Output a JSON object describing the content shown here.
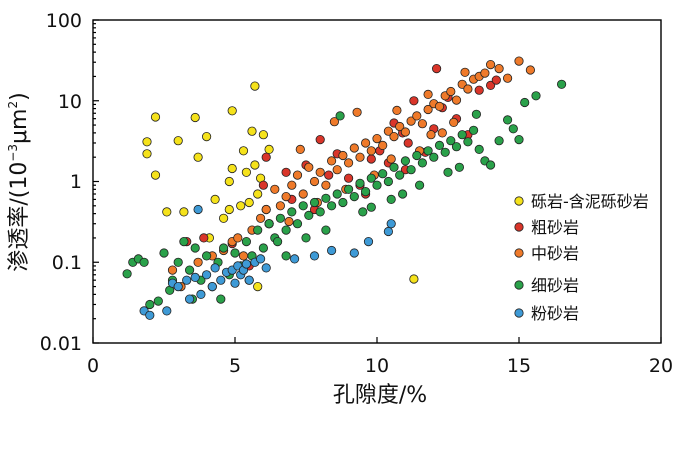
{
  "chart_data": {
    "type": "scatter",
    "xlabel": "孔隙度/%",
    "ylabel_main": "渗透率/",
    "ylabel_unit_open": "(10",
    "ylabel_unit_exp": "−3",
    "ylabel_unit_mid": "μm",
    "ylabel_unit_sq": "2",
    "ylabel_unit_close": ")",
    "xlim": [
      0,
      20
    ],
    "ylim": [
      0.01,
      100
    ],
    "yscale": "log",
    "xticks": [
      0,
      5,
      10,
      15,
      20
    ],
    "xtick_labels": [
      "0",
      "5",
      "10",
      "15",
      "20"
    ],
    "yticks": [
      0.01,
      0.1,
      1,
      10,
      100
    ],
    "ytick_labels": [
      "0.01",
      "0.1",
      "1",
      "10",
      "100"
    ],
    "legend_position": "right",
    "series": [
      {
        "name": "砾岩-含泥砾砂岩",
        "color": "#f5e21b",
        "points": [
          [
            1.9,
            2.2
          ],
          [
            1.9,
            3.1
          ],
          [
            2.2,
            6.3
          ],
          [
            2.2,
            1.2
          ],
          [
            2.6,
            0.42
          ],
          [
            3.0,
            3.2
          ],
          [
            3.2,
            0.42
          ],
          [
            3.6,
            6.2
          ],
          [
            3.7,
            2.0
          ],
          [
            4.0,
            3.6
          ],
          [
            4.1,
            0.2
          ],
          [
            4.3,
            0.6
          ],
          [
            4.6,
            0.35
          ],
          [
            4.8,
            1.0
          ],
          [
            4.8,
            0.45
          ],
          [
            4.9,
            7.5
          ],
          [
            4.9,
            1.45
          ],
          [
            5.2,
            0.5
          ],
          [
            5.3,
            2.4
          ],
          [
            5.4,
            1.3
          ],
          [
            5.5,
            0.55
          ],
          [
            5.6,
            4.2
          ],
          [
            5.7,
            1.6
          ],
          [
            5.8,
            0.7
          ],
          [
            5.9,
            1.1
          ],
          [
            5.7,
            15.2
          ],
          [
            6.0,
            3.8
          ],
          [
            6.1,
            0.45
          ],
          [
            6.2,
            0.3
          ],
          [
            6.2,
            2.5
          ],
          [
            5.8,
            0.05
          ],
          [
            11.3,
            0.062
          ]
        ]
      },
      {
        "name": "粗砂岩",
        "color": "#d9352a",
        "points": [
          [
            3.3,
            0.18
          ],
          [
            3.9,
            0.2
          ],
          [
            4.9,
            0.17
          ],
          [
            5.5,
            0.09
          ],
          [
            6.0,
            0.9
          ],
          [
            6.1,
            2.0
          ],
          [
            6.8,
            1.3
          ],
          [
            7.0,
            0.6
          ],
          [
            7.5,
            1.6
          ],
          [
            7.8,
            0.45
          ],
          [
            8.0,
            3.3
          ],
          [
            8.3,
            1.2
          ],
          [
            8.6,
            2.2
          ],
          [
            9.0,
            1.1
          ],
          [
            9.4,
            0.9
          ],
          [
            9.6,
            0.7
          ],
          [
            9.8,
            1.9
          ],
          [
            10.1,
            2.4
          ],
          [
            10.4,
            1.7
          ],
          [
            10.6,
            5.3
          ],
          [
            10.9,
            4.0
          ],
          [
            11.0,
            1.4
          ],
          [
            11.1,
            3.0
          ],
          [
            11.3,
            10.0
          ],
          [
            11.7,
            2.3
          ],
          [
            12.0,
            4.5
          ],
          [
            12.3,
            8.2
          ],
          [
            12.5,
            11.0
          ],
          [
            12.8,
            6.0
          ],
          [
            13.2,
            3.8
          ],
          [
            13.6,
            13.5
          ],
          [
            14.0,
            15.5
          ],
          [
            14.2,
            18.0
          ],
          [
            12.1,
            25.0
          ]
        ]
      },
      {
        "name": "中砂岩",
        "color": "#ef7a2a",
        "points": [
          [
            2.8,
            0.08
          ],
          [
            3.1,
            0.05
          ],
          [
            3.7,
            0.1
          ],
          [
            4.2,
            0.12
          ],
          [
            4.6,
            0.14
          ],
          [
            4.9,
            0.18
          ],
          [
            5.1,
            0.2
          ],
          [
            5.3,
            0.12
          ],
          [
            5.6,
            0.25
          ],
          [
            5.9,
            0.35
          ],
          [
            6.1,
            0.45
          ],
          [
            6.2,
            0.3
          ],
          [
            6.4,
            0.8
          ],
          [
            6.6,
            0.5
          ],
          [
            6.8,
            0.65
          ],
          [
            7.0,
            0.9
          ],
          [
            7.2,
            1.2
          ],
          [
            7.4,
            0.7
          ],
          [
            7.6,
            1.5
          ],
          [
            7.8,
            1.0
          ],
          [
            8.0,
            1.3
          ],
          [
            8.2,
            0.9
          ],
          [
            8.4,
            1.8
          ],
          [
            8.6,
            1.4
          ],
          [
            8.8,
            2.1
          ],
          [
            9.0,
            1.7
          ],
          [
            9.2,
            2.6
          ],
          [
            9.4,
            2.0
          ],
          [
            9.6,
            3.0
          ],
          [
            9.8,
            2.4
          ],
          [
            10.0,
            3.4
          ],
          [
            10.2,
            2.8
          ],
          [
            10.4,
            4.2
          ],
          [
            10.6,
            3.6
          ],
          [
            10.8,
            4.8
          ],
          [
            11.0,
            4.1
          ],
          [
            11.2,
            5.6
          ],
          [
            11.4,
            6.5
          ],
          [
            11.6,
            5.2
          ],
          [
            11.8,
            7.8
          ],
          [
            12.0,
            9.2
          ],
          [
            12.2,
            8.5
          ],
          [
            12.4,
            11.5
          ],
          [
            12.6,
            13.0
          ],
          [
            12.8,
            10.2
          ],
          [
            13.0,
            16.0
          ],
          [
            13.2,
            14.0
          ],
          [
            13.4,
            18.5
          ],
          [
            13.6,
            20.0
          ],
          [
            13.8,
            22.0
          ],
          [
            14.0,
            28.0
          ],
          [
            14.3,
            25.0
          ],
          [
            14.6,
            19.0
          ],
          [
            15.0,
            31.0
          ],
          [
            15.4,
            24.0
          ],
          [
            13.1,
            22.5
          ],
          [
            12.7,
            5.4
          ],
          [
            11.9,
            3.8
          ],
          [
            9.9,
            1.2
          ],
          [
            8.9,
            0.8
          ],
          [
            7.9,
            0.55
          ],
          [
            6.9,
            0.32
          ],
          [
            11.5,
            2.4
          ],
          [
            10.5,
            1.9
          ],
          [
            12.3,
            4.0
          ],
          [
            7.3,
            2.5
          ],
          [
            8.5,
            5.5
          ],
          [
            9.3,
            7.2
          ],
          [
            10.7,
            7.6
          ],
          [
            11.8,
            12.0
          ]
        ]
      },
      {
        "name": "细砂岩",
        "color": "#2aa14a",
        "points": [
          [
            1.2,
            0.072
          ],
          [
            1.4,
            0.1
          ],
          [
            1.6,
            0.11
          ],
          [
            1.8,
            0.1
          ],
          [
            2.0,
            0.03
          ],
          [
            2.3,
            0.033
          ],
          [
            2.5,
            0.13
          ],
          [
            2.7,
            0.045
          ],
          [
            3.0,
            0.1
          ],
          [
            3.2,
            0.18
          ],
          [
            3.4,
            0.08
          ],
          [
            3.6,
            0.15
          ],
          [
            3.8,
            0.06
          ],
          [
            4.0,
            0.12
          ],
          [
            4.2,
            0.05
          ],
          [
            4.4,
            0.1
          ],
          [
            4.6,
            0.15
          ],
          [
            4.8,
            0.07
          ],
          [
            5.0,
            0.13
          ],
          [
            5.2,
            0.09
          ],
          [
            5.4,
            0.18
          ],
          [
            5.6,
            0.12
          ],
          [
            5.8,
            0.25
          ],
          [
            6.0,
            0.15
          ],
          [
            6.2,
            0.3
          ],
          [
            6.4,
            0.2
          ],
          [
            6.6,
            0.35
          ],
          [
            6.8,
            0.25
          ],
          [
            7.0,
            0.42
          ],
          [
            7.2,
            0.3
          ],
          [
            7.4,
            0.5
          ],
          [
            7.6,
            0.38
          ],
          [
            7.8,
            0.55
          ],
          [
            8.0,
            0.42
          ],
          [
            8.2,
            0.62
          ],
          [
            8.4,
            0.5
          ],
          [
            8.6,
            0.7
          ],
          [
            8.8,
            0.55
          ],
          [
            9.0,
            0.8
          ],
          [
            9.2,
            0.65
          ],
          [
            9.4,
            0.95
          ],
          [
            9.6,
            0.75
          ],
          [
            9.8,
            1.1
          ],
          [
            10.0,
            0.9
          ],
          [
            10.2,
            1.25
          ],
          [
            10.4,
            1.0
          ],
          [
            10.6,
            1.5
          ],
          [
            10.8,
            1.2
          ],
          [
            11.0,
            1.8
          ],
          [
            11.2,
            1.4
          ],
          [
            11.4,
            2.1
          ],
          [
            11.6,
            1.7
          ],
          [
            11.8,
            2.4
          ],
          [
            12.0,
            2.0
          ],
          [
            12.2,
            2.8
          ],
          [
            12.4,
            2.3
          ],
          [
            12.6,
            3.2
          ],
          [
            12.8,
            2.7
          ],
          [
            13.0,
            3.8
          ],
          [
            13.2,
            3.1
          ],
          [
            13.4,
            4.3
          ],
          [
            13.6,
            2.5
          ],
          [
            13.8,
            1.8
          ],
          [
            14.0,
            1.6
          ],
          [
            14.3,
            3.2
          ],
          [
            14.8,
            4.5
          ],
          [
            15.0,
            3.3
          ],
          [
            15.2,
            9.5
          ],
          [
            15.6,
            11.5
          ],
          [
            16.5,
            16.0
          ],
          [
            8.7,
            6.5
          ],
          [
            6.5,
            0.18
          ],
          [
            7.5,
            0.2
          ],
          [
            9.5,
            0.42
          ],
          [
            11.5,
            0.9
          ],
          [
            12.5,
            1.3
          ],
          [
            10.5,
            0.6
          ],
          [
            5.5,
            0.06
          ],
          [
            4.5,
            0.035
          ],
          [
            3.5,
            0.035
          ],
          [
            2.8,
            0.06
          ],
          [
            6.8,
            0.12
          ],
          [
            8.2,
            0.25
          ],
          [
            9.8,
            0.48
          ],
          [
            10.9,
            0.7
          ],
          [
            12.9,
            1.5
          ],
          [
            14.6,
            5.8
          ],
          [
            13.5,
            6.8
          ]
        ]
      },
      {
        "name": "粉砂岩",
        "color": "#3e9ad6",
        "points": [
          [
            1.8,
            0.025
          ],
          [
            2.0,
            0.022
          ],
          [
            2.6,
            0.025
          ],
          [
            2.8,
            0.055
          ],
          [
            3.0,
            0.05
          ],
          [
            3.3,
            0.06
          ],
          [
            3.4,
            0.035
          ],
          [
            3.6,
            0.065
          ],
          [
            3.7,
            0.45
          ],
          [
            3.8,
            0.04
          ],
          [
            4.0,
            0.07
          ],
          [
            4.2,
            0.05
          ],
          [
            4.3,
            0.085
          ],
          [
            4.5,
            0.06
          ],
          [
            4.7,
            0.075
          ],
          [
            4.9,
            0.08
          ],
          [
            5.0,
            0.055
          ],
          [
            5.1,
            0.09
          ],
          [
            5.2,
            0.07
          ],
          [
            5.3,
            0.08
          ],
          [
            5.4,
            0.095
          ],
          [
            5.5,
            0.06
          ],
          [
            5.7,
            0.1
          ],
          [
            5.9,
            0.11
          ],
          [
            6.1,
            0.085
          ],
          [
            7.1,
            0.11
          ],
          [
            7.8,
            0.12
          ],
          [
            8.4,
            0.14
          ],
          [
            9.2,
            0.13
          ],
          [
            9.7,
            0.18
          ],
          [
            10.4,
            0.24
          ],
          [
            10.5,
            0.3
          ]
        ]
      }
    ]
  }
}
